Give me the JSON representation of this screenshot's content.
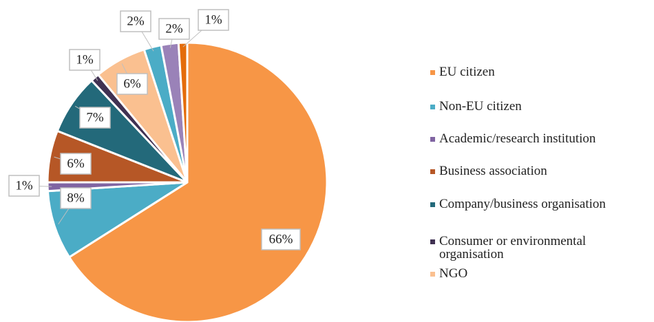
{
  "chart_data": {
    "type": "pie",
    "categories": [
      "EU citizen",
      "Non-EU citizen",
      "Academic/research institution",
      "Business association",
      "Company/business organisation",
      "Consumer or environmental organisation",
      "NGO",
      null,
      null,
      null
    ],
    "values": [
      66,
      8,
      1,
      6,
      7,
      1,
      6,
      2,
      2,
      1
    ],
    "value_labels": [
      "66%",
      "8%",
      "1%",
      "6%",
      "7%",
      "1%",
      "6%",
      "2%",
      "2%",
      "1%"
    ],
    "colors": [
      "#f79646",
      "#4bacc6",
      "#8064a2",
      "#b65726",
      "#23697a",
      "#403152",
      "#fac090",
      "#4bacc6",
      "#9a82b8",
      "#e46c0a"
    ],
    "legend": "right"
  }
}
